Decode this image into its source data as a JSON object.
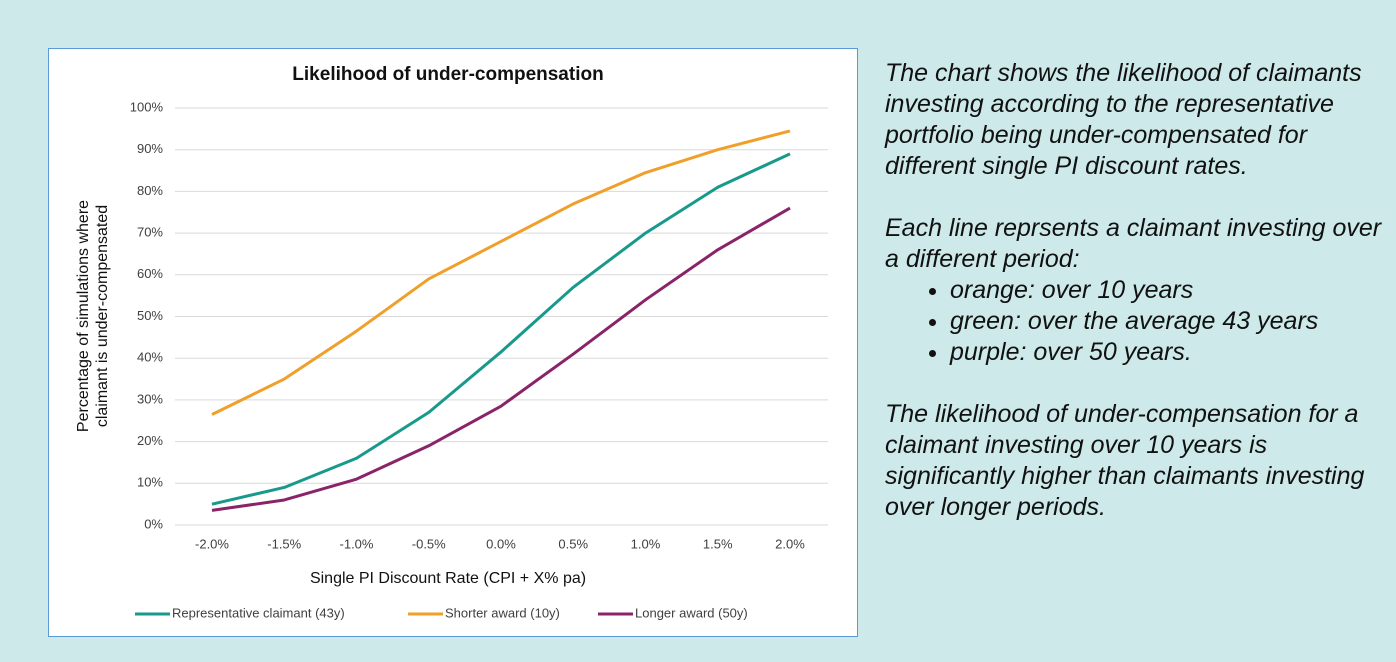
{
  "chart_data": {
    "type": "line",
    "title": "Likelihood of under-compensation",
    "ylabel": [
      "Percentage of simulations  where",
      "claimant is under-compensated"
    ],
    "xlabel": "Single PI Discount Rate (CPI + X% pa)",
    "categories": [
      "-2.0%",
      "-1.5%",
      "-1.0%",
      "-0.5%",
      "0.0%",
      "0.5%",
      "1.0%",
      "1.5%",
      "2.0%"
    ],
    "series": [
      {
        "name": "Representative claimant (43y)",
        "color": "#17998c",
        "values": [
          5,
          9,
          16,
          27,
          41.5,
          57,
          70,
          81,
          89
        ]
      },
      {
        "name": "Shorter award (10y)",
        "color": "#f0a02a",
        "values": [
          26.5,
          35,
          46.5,
          59,
          68,
          77,
          84.5,
          90,
          94.5
        ]
      },
      {
        "name": "Longer award (50y)",
        "color": "#8a2468",
        "values": [
          3.5,
          6,
          11,
          19,
          28.5,
          41,
          54,
          66,
          76
        ]
      }
    ],
    "ylim": [
      0,
      100
    ],
    "yticks": [
      {
        "value": 0,
        "label": "0%"
      },
      {
        "value": 10,
        "label": "10%"
      },
      {
        "value": 20,
        "label": "20%"
      },
      {
        "value": 30,
        "label": "30%"
      },
      {
        "value": 40,
        "label": "40%"
      },
      {
        "value": 50,
        "label": "50%"
      },
      {
        "value": 60,
        "label": "60%"
      },
      {
        "value": 70,
        "label": "70%"
      },
      {
        "value": 80,
        "label": "80%"
      },
      {
        "value": 90,
        "label": "90%"
      },
      {
        "value": 100,
        "label": "100%"
      }
    ],
    "grid": true,
    "legend": "bottom"
  },
  "side_text": {
    "paragraph1": "The chart shows the likelihood of claimants investing according to the representative portfolio being under-compensated for different single PI discount rates.",
    "paragraph2": "Each line reprsents a claimant investing over a different period:",
    "bullets": [
      "orange: over 10 years",
      "green: over the average 43 years",
      "purple: over 50 years."
    ],
    "paragraph3": "The likelihood of under-compensation for a claimant investing over 10 years is significantly higher than claimants investing over longer periods."
  }
}
